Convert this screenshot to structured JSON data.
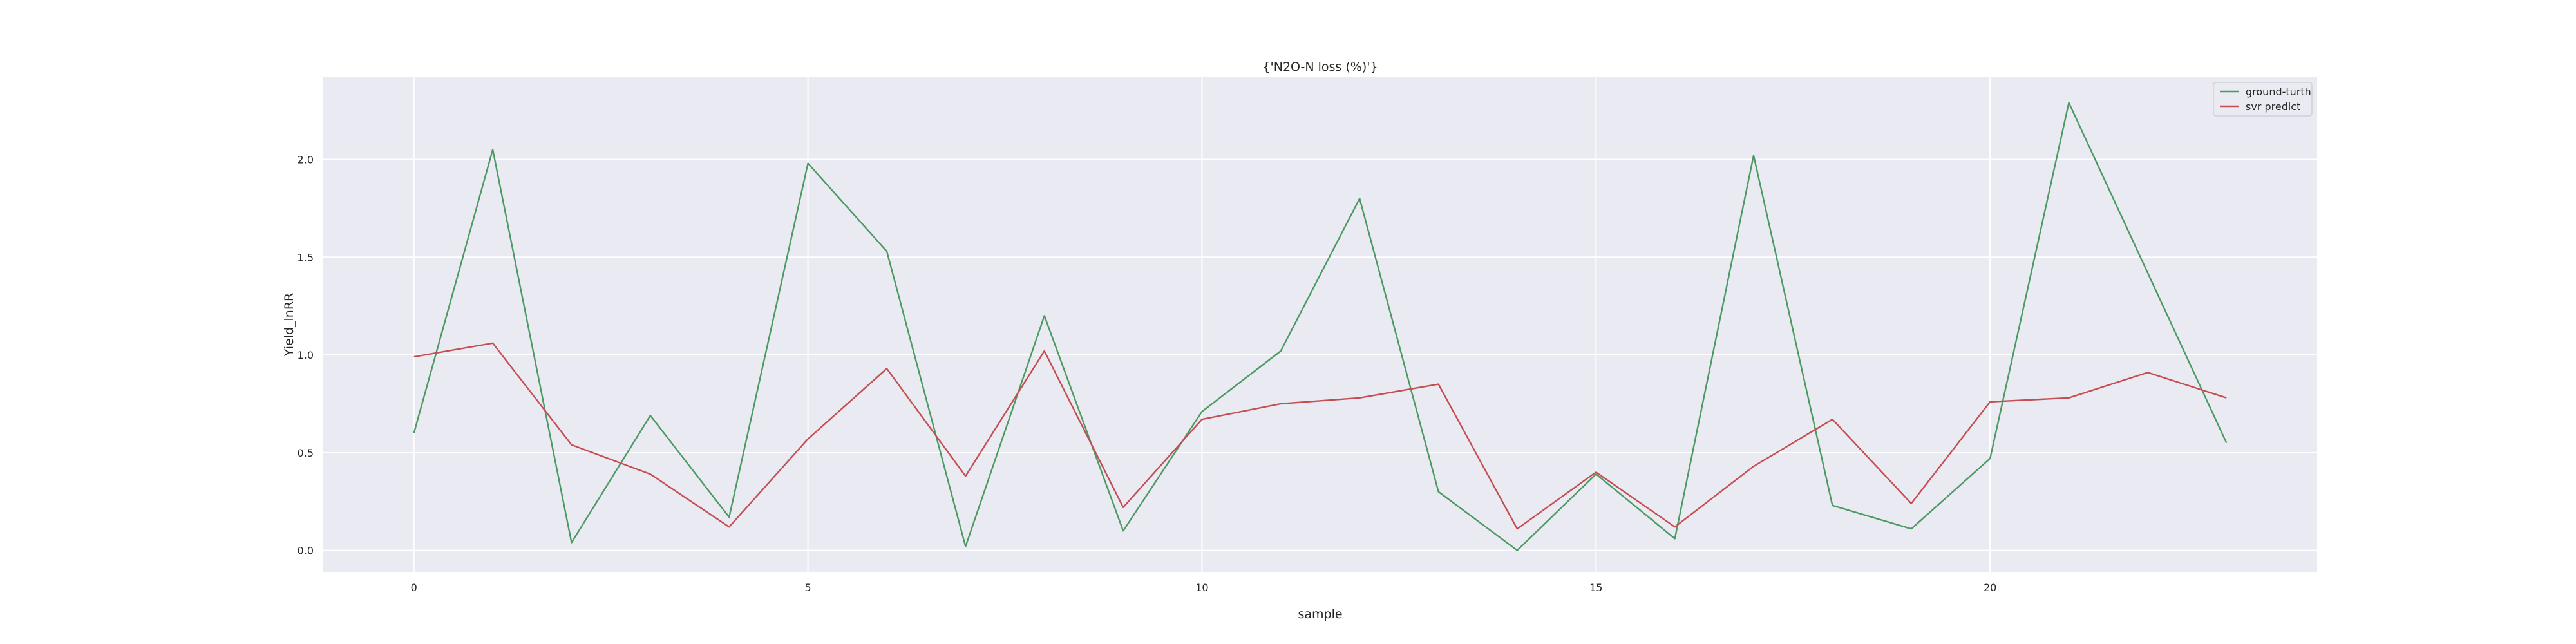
{
  "chart_data": {
    "type": "line",
    "title": "{'N2O-N loss (%)'}",
    "xlabel": "sample",
    "ylabel": "Yield_lnRR",
    "xlim": [
      -1.15,
      24.15
    ],
    "ylim": [
      -0.11,
      2.42
    ],
    "xticks": [
      0,
      5,
      10,
      15,
      20
    ],
    "yticks": [
      0.0,
      0.5,
      1.0,
      1.5,
      2.0
    ],
    "xtick_labels": [
      "0",
      "5",
      "10",
      "15",
      "20"
    ],
    "ytick_labels": [
      "0.0",
      "0.5",
      "1.0",
      "1.5",
      "2.0"
    ],
    "grid": true,
    "legend_position": "top-right",
    "x": [
      0,
      1,
      2,
      3,
      4,
      5,
      6,
      7,
      8,
      9,
      10,
      11,
      12,
      13,
      14,
      15,
      16,
      17,
      18,
      19,
      20,
      21,
      22,
      23
    ],
    "series": [
      {
        "name": "ground-turth",
        "color": "#4c9a62",
        "values": [
          0.6,
          2.05,
          0.04,
          0.69,
          0.17,
          1.98,
          1.53,
          0.02,
          1.2,
          0.1,
          0.71,
          1.02,
          1.8,
          0.3,
          0.0,
          0.39,
          0.06,
          2.02,
          0.23,
          0.11,
          0.47,
          2.29,
          1.42,
          0.55
        ]
      },
      {
        "name": "svr predict",
        "color": "#c44e52",
        "values": [
          0.99,
          1.06,
          0.54,
          0.39,
          0.12,
          0.57,
          0.93,
          0.38,
          1.02,
          0.22,
          0.67,
          0.75,
          0.78,
          0.85,
          0.11,
          0.4,
          0.12,
          0.43,
          0.67,
          0.24,
          0.76,
          0.78,
          0.91,
          0.78
        ]
      }
    ]
  },
  "style": {
    "plot_background": "#eaeaf2",
    "grid_color": "#ffffff",
    "text_color": "#262626"
  }
}
